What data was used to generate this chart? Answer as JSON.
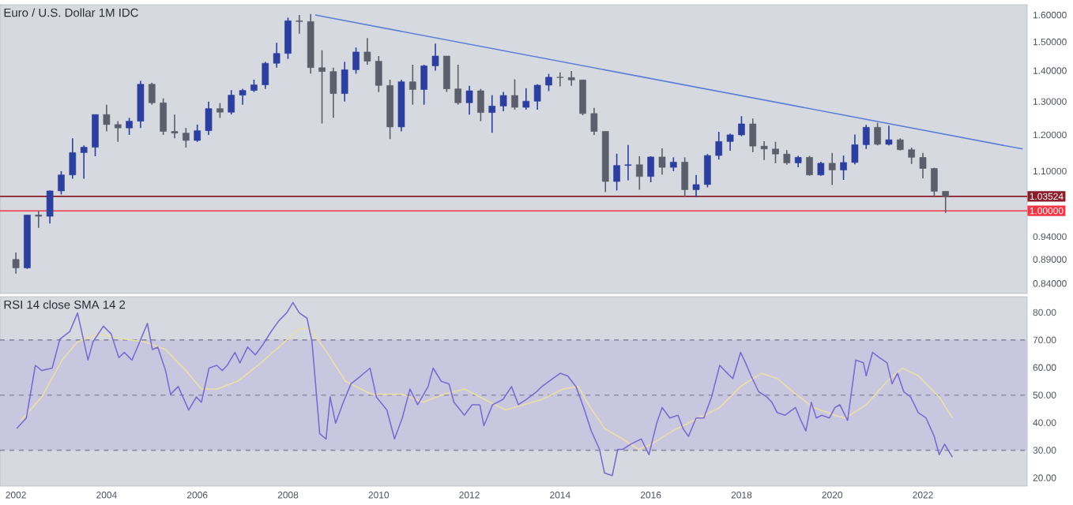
{
  "chart_data": [
    {
      "type": "candlestick",
      "title": "Euro / U.S. Dollar  1M  IDC",
      "log": "y",
      "tick_labels": "y",
      "xlim": [
        2001.65,
        2024.3
      ],
      "ylim": [
        0.82,
        1.64
      ],
      "xticks": [
        2002,
        2004,
        2006,
        2008,
        2010,
        2012,
        2014,
        2016,
        2018,
        2020,
        2022
      ],
      "yticks": [
        {
          "value": 0.84,
          "label": "0.84000"
        },
        {
          "value": 0.89,
          "label": "0.89000"
        },
        {
          "value": 0.94,
          "label": "0.94000"
        },
        {
          "value": 1.1,
          "label": "1.10000"
        },
        {
          "value": 1.2,
          "label": "1.20000"
        },
        {
          "value": 1.3,
          "label": "1.30000"
        },
        {
          "value": 1.4,
          "label": "1.40000"
        },
        {
          "value": 1.5,
          "label": "1.50000"
        },
        {
          "value": 1.6,
          "label": "1.60000"
        }
      ],
      "x": [
        2002.0,
        2002.25,
        2002.5,
        2002.75,
        2003.0,
        2003.25,
        2003.5,
        2003.75,
        2004.0,
        2004.25,
        2004.5,
        2004.75,
        2005.0,
        2005.25,
        2005.5,
        2005.75,
        2006.0,
        2006.25,
        2006.5,
        2006.75,
        2007.0,
        2007.25,
        2007.5,
        2007.75,
        2008.0,
        2008.25,
        2008.5,
        2008.75,
        2009.0,
        2009.25,
        2009.5,
        2009.75,
        2010.0,
        2010.25,
        2010.5,
        2010.75,
        2011.0,
        2011.25,
        2011.5,
        2011.75,
        2012.0,
        2012.25,
        2012.5,
        2012.75,
        2013.0,
        2013.25,
        2013.5,
        2013.75,
        2014.0,
        2014.25,
        2014.5,
        2014.75,
        2015.0,
        2015.25,
        2015.5,
        2015.75,
        2016.0,
        2016.25,
        2016.5,
        2016.75,
        2017.0,
        2017.25,
        2017.5,
        2017.75,
        2018.0,
        2018.25,
        2018.5,
        2018.75,
        2019.0,
        2019.25,
        2019.5,
        2019.75,
        2020.0,
        2020.25,
        2020.5,
        2020.75,
        2021.0,
        2021.25,
        2021.5,
        2021.75,
        2022.0,
        2022.25,
        2022.5
      ],
      "ohlc": [
        [
          0.89,
          0.905,
          0.86,
          0.872
        ],
        [
          0.872,
          0.99,
          0.87,
          0.99
        ],
        [
          0.99,
          1.0,
          0.96,
          0.987
        ],
        [
          0.987,
          1.05,
          0.97,
          1.049
        ],
        [
          1.049,
          1.1,
          1.04,
          1.09
        ],
        [
          1.09,
          1.19,
          1.08,
          1.15
        ],
        [
          1.15,
          1.17,
          1.08,
          1.165
        ],
        [
          1.165,
          1.26,
          1.14,
          1.26
        ],
        [
          1.26,
          1.29,
          1.21,
          1.23
        ],
        [
          1.23,
          1.24,
          1.18,
          1.22
        ],
        [
          1.22,
          1.25,
          1.2,
          1.24
        ],
        [
          1.24,
          1.366,
          1.22,
          1.355
        ],
        [
          1.355,
          1.36,
          1.29,
          1.296
        ],
        [
          1.296,
          1.31,
          1.2,
          1.21
        ],
        [
          1.21,
          1.26,
          1.19,
          1.205
        ],
        [
          1.205,
          1.22,
          1.164,
          1.184
        ],
        [
          1.184,
          1.23,
          1.18,
          1.212
        ],
        [
          1.212,
          1.3,
          1.2,
          1.278
        ],
        [
          1.278,
          1.295,
          1.25,
          1.267
        ],
        [
          1.267,
          1.336,
          1.26,
          1.32
        ],
        [
          1.32,
          1.34,
          1.29,
          1.335
        ],
        [
          1.335,
          1.37,
          1.33,
          1.353
        ],
        [
          1.353,
          1.43,
          1.34,
          1.425
        ],
        [
          1.425,
          1.497,
          1.41,
          1.459
        ],
        [
          1.459,
          1.59,
          1.44,
          1.578
        ],
        [
          1.578,
          1.6,
          1.53,
          1.575
        ],
        [
          1.575,
          1.604,
          1.39,
          1.41
        ],
        [
          1.41,
          1.47,
          1.233,
          1.397
        ],
        [
          1.397,
          1.41,
          1.25,
          1.325
        ],
        [
          1.325,
          1.43,
          1.3,
          1.403
        ],
        [
          1.403,
          1.48,
          1.39,
          1.464
        ],
        [
          1.464,
          1.514,
          1.42,
          1.432
        ],
        [
          1.432,
          1.45,
          1.33,
          1.351
        ],
        [
          1.351,
          1.37,
          1.188,
          1.223
        ],
        [
          1.223,
          1.37,
          1.21,
          1.363
        ],
        [
          1.363,
          1.42,
          1.29,
          1.338
        ],
        [
          1.338,
          1.42,
          1.29,
          1.416
        ],
        [
          1.416,
          1.494,
          1.4,
          1.45
        ],
        [
          1.45,
          1.45,
          1.33,
          1.34
        ],
        [
          1.34,
          1.42,
          1.29,
          1.296
        ],
        [
          1.296,
          1.35,
          1.26,
          1.334
        ],
        [
          1.334,
          1.34,
          1.24,
          1.266
        ],
        [
          1.266,
          1.32,
          1.206,
          1.286
        ],
        [
          1.286,
          1.33,
          1.27,
          1.319
        ],
        [
          1.319,
          1.371,
          1.275,
          1.282
        ],
        [
          1.282,
          1.342,
          1.275,
          1.301
        ],
        [
          1.301,
          1.355,
          1.275,
          1.352
        ],
        [
          1.352,
          1.389,
          1.333,
          1.378
        ],
        [
          1.378,
          1.394,
          1.348,
          1.377
        ],
        [
          1.377,
          1.399,
          1.35,
          1.369
        ],
        [
          1.369,
          1.37,
          1.258,
          1.263
        ],
        [
          1.263,
          1.28,
          1.2,
          1.21
        ],
        [
          1.21,
          1.21,
          1.046,
          1.073
        ],
        [
          1.073,
          1.147,
          1.05,
          1.115
        ],
        [
          1.115,
          1.171,
          1.076,
          1.117
        ],
        [
          1.117,
          1.14,
          1.052,
          1.086
        ],
        [
          1.086,
          1.14,
          1.071,
          1.138
        ],
        [
          1.138,
          1.162,
          1.091,
          1.11
        ],
        [
          1.11,
          1.137,
          1.1,
          1.124
        ],
        [
          1.124,
          1.137,
          1.035,
          1.052
        ],
        [
          1.052,
          1.09,
          1.034,
          1.065
        ],
        [
          1.065,
          1.146,
          1.058,
          1.142
        ],
        [
          1.142,
          1.209,
          1.131,
          1.181
        ],
        [
          1.181,
          1.204,
          1.155,
          1.2
        ],
        [
          1.2,
          1.255,
          1.196,
          1.232
        ],
        [
          1.232,
          1.248,
          1.151,
          1.168
        ],
        [
          1.168,
          1.182,
          1.13,
          1.16
        ],
        [
          1.16,
          1.18,
          1.121,
          1.146
        ],
        [
          1.146,
          1.157,
          1.117,
          1.122
        ],
        [
          1.122,
          1.141,
          1.11,
          1.137
        ],
        [
          1.137,
          1.141,
          1.088,
          1.09
        ],
        [
          1.09,
          1.125,
          1.088,
          1.121
        ],
        [
          1.121,
          1.149,
          1.064,
          1.103
        ],
        [
          1.103,
          1.142,
          1.077,
          1.123
        ],
        [
          1.123,
          1.201,
          1.118,
          1.172
        ],
        [
          1.172,
          1.229,
          1.16,
          1.222
        ],
        [
          1.222,
          1.235,
          1.17,
          1.173
        ],
        [
          1.173,
          1.227,
          1.17,
          1.186
        ],
        [
          1.186,
          1.19,
          1.156,
          1.158
        ],
        [
          1.158,
          1.164,
          1.119,
          1.137
        ],
        [
          1.137,
          1.149,
          1.081,
          1.107
        ],
        [
          1.107,
          1.109,
          1.035,
          1.048
        ],
        [
          1.048,
          1.048,
          0.995,
          1.035
        ]
      ],
      "colors": [
        "#5a5f6b",
        "#2c3f9e",
        "#5a5f6b",
        "#2c3f9e",
        "#2c3f9e",
        "#2c3f9e",
        "#2c3f9e",
        "#2c3f9e",
        "#5a5f6b",
        "#5a5f6b",
        "#2c3f9e",
        "#2c3f9e",
        "#5a5f6b",
        "#5a5f6b",
        "#5a5f6b",
        "#5a5f6b",
        "#2c3f9e",
        "#2c3f9e",
        "#5a5f6b",
        "#2c3f9e",
        "#2c3f9e",
        "#2c3f9e",
        "#2c3f9e",
        "#2c3f9e",
        "#2c3f9e",
        "#5a5f6b",
        "#5a5f6b",
        "#5a5f6b",
        "#5a5f6b",
        "#2c3f9e",
        "#2c3f9e",
        "#5a5f6b",
        "#5a5f6b",
        "#5a5f6b",
        "#2c3f9e",
        "#5a5f6b",
        "#2c3f9e",
        "#2c3f9e",
        "#5a5f6b",
        "#5a5f6b",
        "#2c3f9e",
        "#5a5f6b",
        "#2c3f9e",
        "#2c3f9e",
        "#5a5f6b",
        "#2c3f9e",
        "#2c3f9e",
        "#2c3f9e",
        "#5a5f6b",
        "#5a5f6b",
        "#5a5f6b",
        "#5a5f6b",
        "#5a5f6b",
        "#2c3f9e",
        "#2c3f9e",
        "#5a5f6b",
        "#2c3f9e",
        "#5a5f6b",
        "#2c3f9e",
        "#5a5f6b",
        "#2c3f9e",
        "#2c3f9e",
        "#2c3f9e",
        "#2c3f9e",
        "#2c3f9e",
        "#5a5f6b",
        "#5a5f6b",
        "#5a5f6b",
        "#5a5f6b",
        "#2c3f9e",
        "#5a5f6b",
        "#2c3f9e",
        "#5a5f6b",
        "#2c3f9e",
        "#2c3f9e",
        "#2c3f9e",
        "#5a5f6b",
        "#2c3f9e",
        "#5a5f6b",
        "#5a5f6b",
        "#5a5f6b",
        "#5a5f6b",
        "#5a5f6b"
      ],
      "series": [
        {
          "type": "line",
          "color": "#5b7fd6",
          "x": [
            2008.6,
            2024.2
          ],
          "values": [
            1.6,
            1.16
          ]
        }
      ],
      "ref_lines": [
        {
          "axis": "y",
          "value": 1.03524,
          "label": "1.03524",
          "color": "#8b1e2a"
        },
        {
          "axis": "y",
          "value": 1.0,
          "label": "1.00000",
          "color": "#f23645"
        }
      ]
    },
    {
      "type": "line",
      "title": "RSI 14 close SMA 14 2",
      "xlim": [
        2001.65,
        2024.3
      ],
      "ylim": [
        17,
        85.7
      ],
      "xticks": [
        2002,
        2004,
        2006,
        2008,
        2010,
        2012,
        2014,
        2016,
        2018,
        2020,
        2022
      ],
      "yticks": [
        {
          "value": 20,
          "label": "20.00"
        },
        {
          "value": 30,
          "label": "30.00"
        },
        {
          "value": 40,
          "label": "40.00"
        },
        {
          "value": 50,
          "label": "50.00"
        },
        {
          "value": 60,
          "label": "60.00"
        },
        {
          "value": 70,
          "label": "70.00"
        },
        {
          "value": 80,
          "label": "80.00"
        }
      ],
      "bands": [
        {
          "axis": "y",
          "from": 30,
          "to": 70,
          "color": "#c9c7e0"
        }
      ],
      "ref_lines": [
        {
          "axis": "y",
          "value": 70,
          "color": "#8e8ca6",
          "line_style": "dashed"
        },
        {
          "axis": "y",
          "value": 50,
          "color": "#8e8ca6",
          "line_style": "dashed"
        },
        {
          "axis": "y",
          "value": 30,
          "color": "#8e8ca6",
          "line_style": "dashed"
        }
      ],
      "series": [
        {
          "color": "#e9e0a6",
          "x": [
            2002.11,
            2002.57,
            2003.02,
            2003.36,
            2003.82,
            2004.39,
            2004.84,
            2005.3,
            2005.75,
            2006.09,
            2006.43,
            2006.89,
            2007.34,
            2007.8,
            2008.25,
            2008.48,
            2008.82,
            2009.27,
            2009.84,
            2010.52,
            2010.98,
            2011.43,
            2011.89,
            2012.34,
            2012.8,
            2013.6,
            2014.06,
            2014.4,
            2014.63,
            2014.98,
            2015.38,
            2015.73,
            2016.02,
            2016.48,
            2017.06,
            2017.52,
            2017.98,
            2018.44,
            2018.79,
            2019.13,
            2019.59,
            2020.06,
            2020.29,
            2020.75,
            2021.21,
            2021.55,
            2021.9,
            2022.36,
            2022.65
          ],
          "values": [
            40.8,
            49.3,
            62.7,
            69.3,
            72.2,
            70.3,
            69.3,
            66.5,
            58.9,
            52.2,
            52.2,
            55.0,
            60.8,
            67.4,
            74.1,
            74.1,
            66.5,
            55.0,
            50.3,
            50.3,
            47.4,
            50.3,
            52.2,
            48.4,
            44.6,
            48.4,
            52.2,
            53.1,
            46.5,
            37.9,
            34.1,
            30.3,
            32.2,
            37.0,
            41.7,
            45.5,
            53.1,
            57.9,
            56.0,
            51.2,
            45.5,
            42.7,
            41.7,
            46.5,
            55.0,
            59.8,
            57.0,
            49.3,
            41.7
          ]
        },
        {
          "color": "#7b6cd0",
          "x": [
            2002.02,
            2002.23,
            2002.43,
            2002.57,
            2002.8,
            2002.97,
            2003.19,
            2003.36,
            2003.59,
            2003.7,
            2003.93,
            2004.1,
            2004.27,
            2004.39,
            2004.56,
            2004.73,
            2004.9,
            2005.01,
            2005.13,
            2005.3,
            2005.41,
            2005.58,
            2005.81,
            2005.98,
            2006.09,
            2006.26,
            2006.43,
            2006.55,
            2006.66,
            2006.83,
            2006.94,
            2007.11,
            2007.28,
            2007.45,
            2007.63,
            2007.8,
            2007.97,
            2008.11,
            2008.25,
            2008.42,
            2008.53,
            2008.7,
            2008.84,
            2008.93,
            2009.05,
            2009.22,
            2009.39,
            2009.61,
            2009.81,
            2009.95,
            2010.18,
            2010.35,
            2010.52,
            2010.69,
            2010.86,
            2011.09,
            2011.2,
            2011.38,
            2011.55,
            2011.66,
            2011.89,
            2012.06,
            2012.23,
            2012.32,
            2012.51,
            2012.74,
            2012.93,
            2013.08,
            2013.25,
            2013.48,
            2013.6,
            2013.83,
            2014.0,
            2014.17,
            2014.35,
            2014.52,
            2014.69,
            2014.87,
            2014.98,
            2015.15,
            2015.27,
            2015.38,
            2015.56,
            2015.79,
            2015.96,
            2016.13,
            2016.25,
            2016.42,
            2016.6,
            2016.71,
            2016.83,
            2017.0,
            2017.17,
            2017.34,
            2017.52,
            2017.69,
            2017.81,
            2017.98,
            2018.09,
            2018.21,
            2018.38,
            2018.56,
            2018.67,
            2018.79,
            2018.96,
            2019.19,
            2019.31,
            2019.42,
            2019.54,
            2019.65,
            2019.77,
            2019.94,
            2020.06,
            2020.17,
            2020.34,
            2020.52,
            2020.69,
            2020.75,
            2020.89,
            2021.04,
            2021.21,
            2021.32,
            2021.44,
            2021.58,
            2021.73,
            2021.9,
            2022.07,
            2022.25,
            2022.36,
            2022.48,
            2022.65
          ],
          "values": [
            37.9,
            41.7,
            60.8,
            58.9,
            59.8,
            70.3,
            73.1,
            79.8,
            62.7,
            69.3,
            75.0,
            72.2,
            63.6,
            65.5,
            62.7,
            69.3,
            76.0,
            66.5,
            67.4,
            58.9,
            50.3,
            53.1,
            44.6,
            49.3,
            47.4,
            59.8,
            60.8,
            58.9,
            60.8,
            65.5,
            61.7,
            67.4,
            64.6,
            68.4,
            73.1,
            77.0,
            79.8,
            83.6,
            79.8,
            77.9,
            69.3,
            36.0,
            34.1,
            49.3,
            39.8,
            47.4,
            54.1,
            57.0,
            59.8,
            49.3,
            44.6,
            34.1,
            41.7,
            52.2,
            46.5,
            53.1,
            59.8,
            55.0,
            54.1,
            47.4,
            42.7,
            46.5,
            46.5,
            38.9,
            46.5,
            48.4,
            53.1,
            46.5,
            48.4,
            51.2,
            53.1,
            55.9,
            57.9,
            56.9,
            53.1,
            45.5,
            36.9,
            30.3,
            21.7,
            20.8,
            30.3,
            30.3,
            32.2,
            34.1,
            28.4,
            39.8,
            45.5,
            41.7,
            42.7,
            37.9,
            35.0,
            41.7,
            41.7,
            49.3,
            60.8,
            57.9,
            56.0,
            65.5,
            61.7,
            57.0,
            51.2,
            49.3,
            47.4,
            43.6,
            42.7,
            45.5,
            40.8,
            37.0,
            47.4,
            41.7,
            42.7,
            41.7,
            45.5,
            46.5,
            40.8,
            62.7,
            61.7,
            57.0,
            65.5,
            63.6,
            61.7,
            54.1,
            57.9,
            51.2,
            49.3,
            43.6,
            41.7,
            35.0,
            28.4,
            32.2,
            27.5
          ]
        }
      ]
    }
  ]
}
